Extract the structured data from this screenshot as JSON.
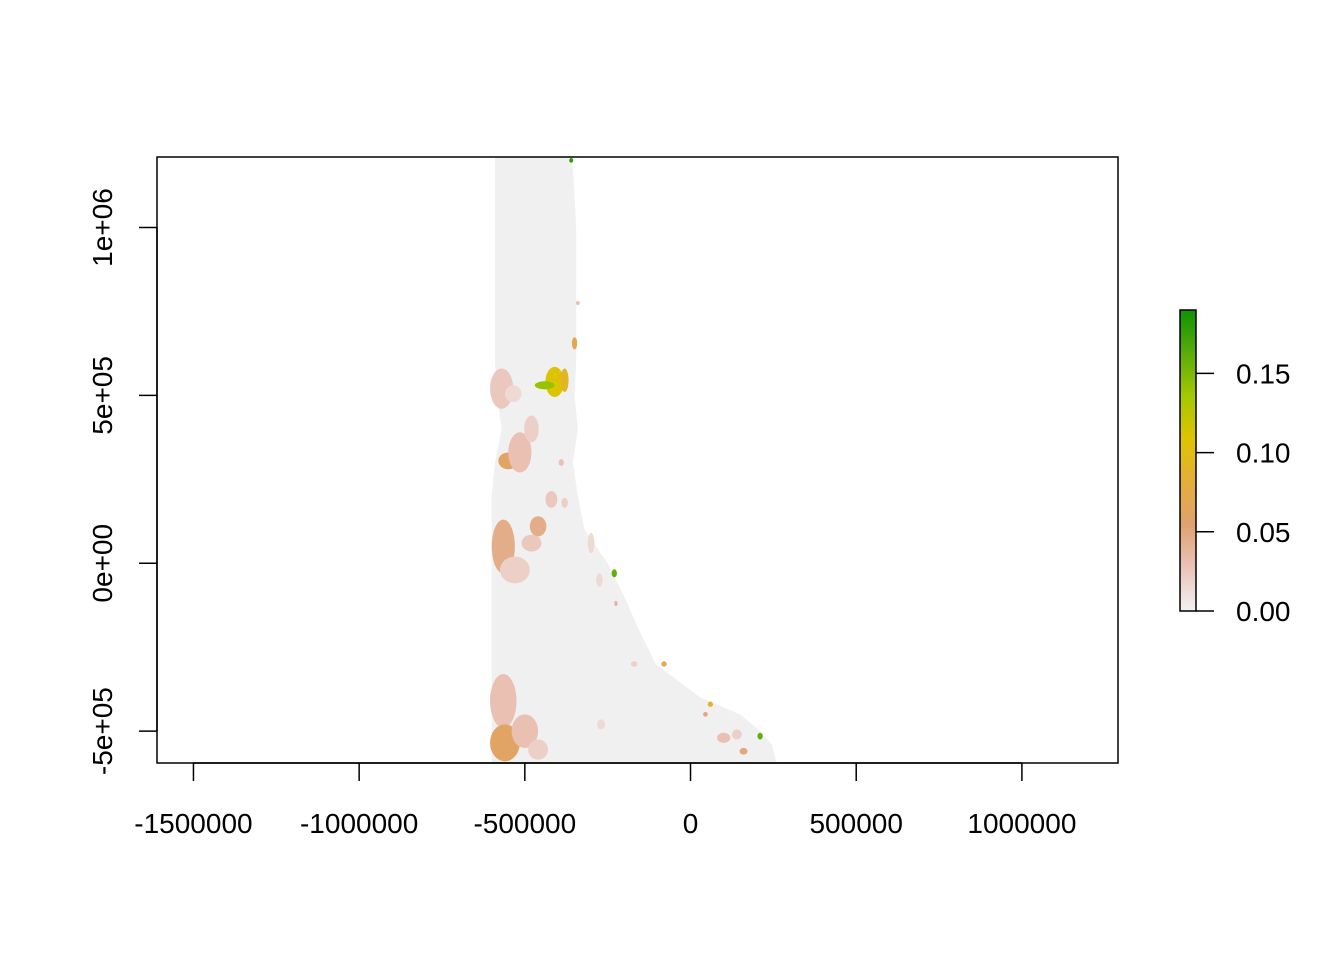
{
  "chart_data": {
    "type": "heatmap",
    "title": "",
    "xlabel": "",
    "ylabel": "",
    "xlim": [
      -1610000,
      1290000
    ],
    "ylim": [
      -595000,
      1210000
    ],
    "x_ticks": [
      {
        "value": -1500000,
        "label": "-1500000"
      },
      {
        "value": -1000000,
        "label": "-1000000"
      },
      {
        "value": -500000,
        "label": "-500000"
      },
      {
        "value": 0,
        "label": "0"
      },
      {
        "value": 500000,
        "label": "500000"
      },
      {
        "value": 1000000,
        "label": "1000000"
      }
    ],
    "y_ticks": [
      {
        "value": -500000,
        "label": "-5e+05"
      },
      {
        "value": 0,
        "label": "0e+00"
      },
      {
        "value": 500000,
        "label": "5e+05"
      },
      {
        "value": 1000000,
        "label": "1e+06"
      }
    ],
    "legend": {
      "placement": "right",
      "min": 0,
      "max": 0.19,
      "ticks": [
        {
          "value": 0,
          "label": "0.00"
        },
        {
          "value": 0.05,
          "label": "0.05"
        },
        {
          "value": 0.1,
          "label": "0.10"
        },
        {
          "value": 0.15,
          "label": "0.15"
        }
      ],
      "colors": [
        "#f2f2f2",
        "#eac4b9",
        "#e0a170",
        "#e4ae3a",
        "#dfc400",
        "#a4c800",
        "#5aab0c",
        "#0e9300"
      ]
    },
    "raster": {
      "background_color": "#f0f0f0",
      "mask": [
        [
          1210000,
          -590000,
          -360000
        ],
        [
          1180000,
          -590000,
          -355000
        ],
        [
          1100000,
          -590000,
          -350000
        ],
        [
          1000000,
          -590000,
          -345000
        ],
        [
          900000,
          -590000,
          -345000
        ],
        [
          800000,
          -590000,
          -345000
        ],
        [
          700000,
          -590000,
          -345000
        ],
        [
          600000,
          -590000,
          -345000
        ],
        [
          500000,
          -585000,
          -350000
        ],
        [
          400000,
          -570000,
          -340000
        ],
        [
          300000,
          -590000,
          -355000
        ],
        [
          200000,
          -600000,
          -340000
        ],
        [
          100000,
          -600000,
          -320000
        ],
        [
          0,
          -600000,
          -250000
        ],
        [
          -100000,
          -600000,
          -200000
        ],
        [
          -200000,
          -600000,
          -155000
        ],
        [
          -300000,
          -600000,
          -105000
        ],
        [
          -400000,
          -600000,
          30000
        ],
        [
          -450000,
          -600000,
          150000
        ],
        [
          -500000,
          -600000,
          210000
        ],
        [
          -540000,
          -600000,
          245000
        ],
        [
          -595000,
          -600000,
          260000
        ]
      ],
      "patches": [
        {
          "x": -570000,
          "y": 520000,
          "rx": 35000,
          "ry": 60000,
          "value": 0.025
        },
        {
          "x": -535000,
          "y": 505000,
          "rx": 25000,
          "ry": 25000,
          "value": 0.015
        },
        {
          "x": -410000,
          "y": 540000,
          "rx": 28000,
          "ry": 45000,
          "value": 0.11
        },
        {
          "x": -440000,
          "y": 530000,
          "rx": 30000,
          "ry": 12000,
          "value": 0.14
        },
        {
          "x": -380000,
          "y": 545000,
          "rx": 12000,
          "ry": 35000,
          "value": 0.09
        },
        {
          "x": -350000,
          "y": 655000,
          "rx": 8000,
          "ry": 18000,
          "value": 0.07
        },
        {
          "x": -340000,
          "y": 775000,
          "rx": 6000,
          "ry": 6000,
          "value": 0.03
        },
        {
          "x": -550000,
          "y": 305000,
          "rx": 30000,
          "ry": 25000,
          "value": 0.06
        },
        {
          "x": -515000,
          "y": 330000,
          "rx": 35000,
          "ry": 60000,
          "value": 0.03
        },
        {
          "x": -480000,
          "y": 400000,
          "rx": 22000,
          "ry": 40000,
          "value": 0.02
        },
        {
          "x": -390000,
          "y": 300000,
          "rx": 8000,
          "ry": 10000,
          "value": 0.03
        },
        {
          "x": -565000,
          "y": 50000,
          "rx": 35000,
          "ry": 80000,
          "value": 0.045
        },
        {
          "x": -530000,
          "y": -20000,
          "rx": 45000,
          "ry": 40000,
          "value": 0.02
        },
        {
          "x": -460000,
          "y": 110000,
          "rx": 25000,
          "ry": 30000,
          "value": 0.045
        },
        {
          "x": -480000,
          "y": 60000,
          "rx": 30000,
          "ry": 25000,
          "value": 0.025
        },
        {
          "x": -420000,
          "y": 190000,
          "rx": 18000,
          "ry": 25000,
          "value": 0.025
        },
        {
          "x": -380000,
          "y": 180000,
          "rx": 10000,
          "ry": 15000,
          "value": 0.02
        },
        {
          "x": -300000,
          "y": 60000,
          "rx": 10000,
          "ry": 30000,
          "value": 0.015
        },
        {
          "x": -230000,
          "y": -30000,
          "rx": 8000,
          "ry": 12000,
          "value": 0.16
        },
        {
          "x": -275000,
          "y": -50000,
          "rx": 10000,
          "ry": 20000,
          "value": 0.015
        },
        {
          "x": -225000,
          "y": -120000,
          "rx": 5000,
          "ry": 8000,
          "value": 0.04
        },
        {
          "x": -565000,
          "y": -410000,
          "rx": 40000,
          "ry": 80000,
          "value": 0.03
        },
        {
          "x": -560000,
          "y": -535000,
          "rx": 45000,
          "ry": 55000,
          "value": 0.06
        },
        {
          "x": -500000,
          "y": -500000,
          "rx": 40000,
          "ry": 50000,
          "value": 0.03
        },
        {
          "x": -460000,
          "y": -555000,
          "rx": 30000,
          "ry": 30000,
          "value": 0.02
        },
        {
          "x": -270000,
          "y": -480000,
          "rx": 12000,
          "ry": 15000,
          "value": 0.015
        },
        {
          "x": -170000,
          "y": -300000,
          "rx": 10000,
          "ry": 8000,
          "value": 0.02
        },
        {
          "x": -80000,
          "y": -300000,
          "rx": 8000,
          "ry": 8000,
          "value": 0.07
        },
        {
          "x": 60000,
          "y": -420000,
          "rx": 8000,
          "ry": 8000,
          "value": 0.09
        },
        {
          "x": 45000,
          "y": -450000,
          "rx": 7000,
          "ry": 7000,
          "value": 0.05
        },
        {
          "x": 100000,
          "y": -520000,
          "rx": 20000,
          "ry": 15000,
          "value": 0.03
        },
        {
          "x": 140000,
          "y": -510000,
          "rx": 15000,
          "ry": 15000,
          "value": 0.02
        },
        {
          "x": 210000,
          "y": -515000,
          "rx": 8000,
          "ry": 10000,
          "value": 0.16
        },
        {
          "x": 160000,
          "y": -560000,
          "rx": 12000,
          "ry": 10000,
          "value": 0.05
        },
        {
          "x": -360000,
          "y": 1200000,
          "rx": 6000,
          "ry": 7000,
          "value": 0.18
        }
      ]
    }
  }
}
